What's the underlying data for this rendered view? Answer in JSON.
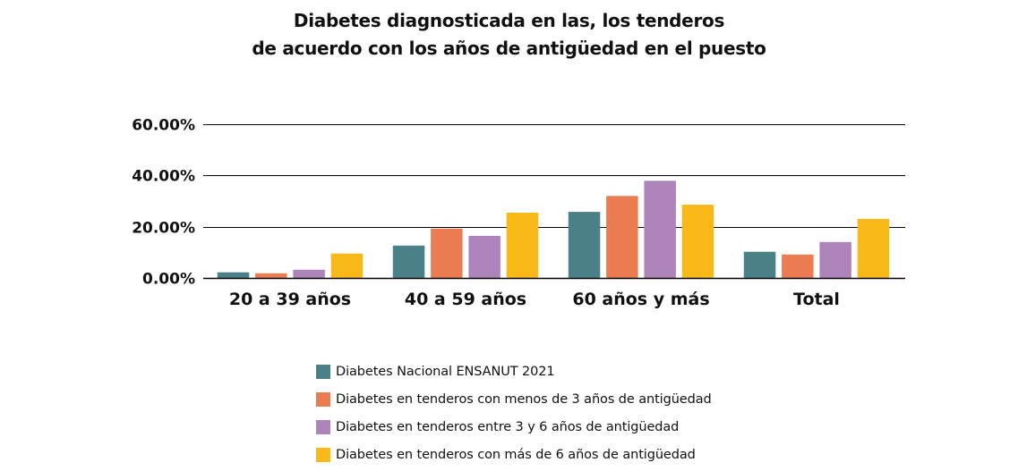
{
  "chart_data": {
    "type": "bar",
    "title": "Diabetes diagnosticada en las, los tenderos de acuerdo con los años de antigüedad en el puesto",
    "title_lines": [
      "Diabetes diagnosticada en las, los tenderos",
      "de acuerdo con los años de antigüedad en el puesto"
    ],
    "xlabel": "",
    "ylabel": "",
    "ylim": [
      0,
      60
    ],
    "yticks": [
      0,
      20,
      40,
      60
    ],
    "ytick_labels": [
      "0.00%",
      "20.00%",
      "40.00%",
      "60.00%"
    ],
    "grid": true,
    "legend_position": "bottom",
    "categories": [
      "20 a 39 años",
      "40 a 59 años",
      "60 años y más",
      "Total"
    ],
    "series": [
      {
        "name": "Diabetes Nacional ENSANUT 2021",
        "color": "#4A8088",
        "values": [
          2.2,
          12.6,
          25.7,
          10.2
        ]
      },
      {
        "name": "Diabetes en tenderos con menos de 3 años de antigüedad",
        "color": "#EB7B51",
        "values": [
          1.8,
          19.2,
          31.9,
          9.1
        ]
      },
      {
        "name": "Diabetes en tenderos entre 3 y 6 años de antigüedad",
        "color": "#AC84BA",
        "values": [
          3.2,
          16.4,
          37.8,
          14.0
        ]
      },
      {
        "name": "Diabetes en tenderos con más de 6 años de antigüedad",
        "color": "#F8B818",
        "values": [
          9.5,
          25.4,
          28.5,
          23.0
        ]
      }
    ]
  }
}
